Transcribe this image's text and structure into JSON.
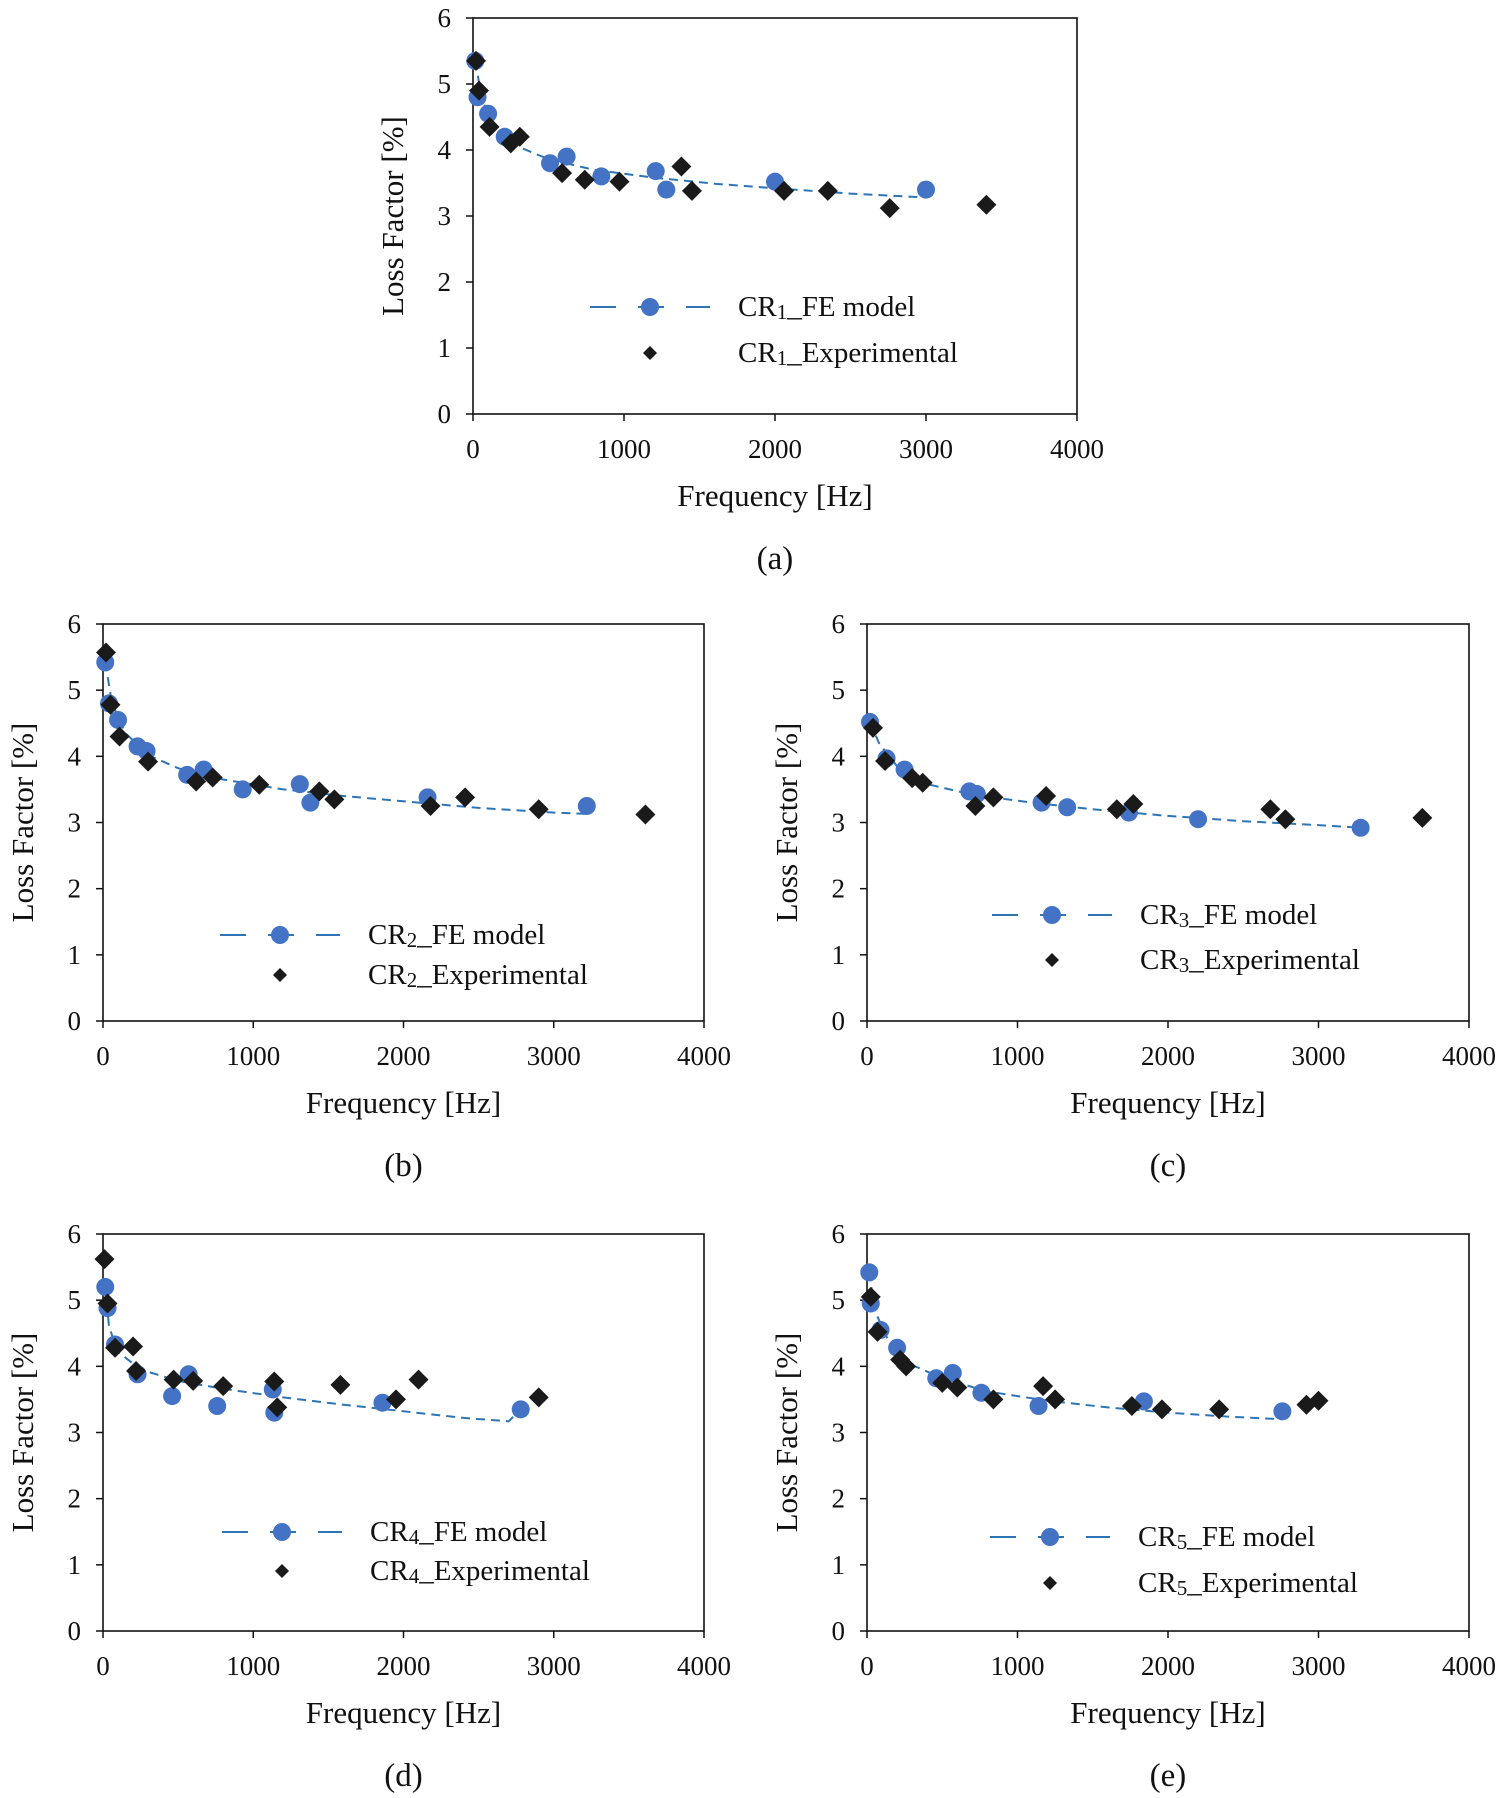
{
  "colors": {
    "model_marker": "#4472C4",
    "model_line": "#2E75B6",
    "experimental_marker": "#1A1A1A",
    "axis": "#111111"
  },
  "chart_data": [
    {
      "id": "a",
      "type": "scatter",
      "caption": "(a)",
      "xlabel": "Frequency [Hz]",
      "ylabel": "Loss Factor [%]",
      "xlim": [
        0,
        4000
      ],
      "ylim": [
        0,
        6
      ],
      "xticks": [
        "0",
        "1000",
        "2000",
        "3000",
        "4000"
      ],
      "yticks": [
        "0",
        "1",
        "2",
        "3",
        "4",
        "5",
        "6"
      ],
      "legend_position": "bottom-right",
      "series": [
        {
          "name": "CR1_FE model",
          "label_prefix": "CR",
          "label_sub": "1",
          "label_suffix": "_FE model",
          "marker": "circle",
          "points": [
            [
              15,
              5.35
            ],
            [
              30,
              4.8
            ],
            [
              100,
              4.55
            ],
            [
              210,
              4.2
            ],
            [
              510,
              3.8
            ],
            [
              620,
              3.9
            ],
            [
              850,
              3.6
            ],
            [
              1210,
              3.68
            ],
            [
              1280,
              3.4
            ],
            [
              2000,
              3.52
            ],
            [
              3000,
              3.4
            ]
          ],
          "fit": [
            [
              15,
              5.35
            ],
            [
              60,
              4.75
            ],
            [
              150,
              4.35
            ],
            [
              300,
              4.05
            ],
            [
              500,
              3.86
            ],
            [
              800,
              3.7
            ],
            [
              1200,
              3.58
            ],
            [
              1600,
              3.49
            ],
            [
              2000,
              3.42
            ],
            [
              2500,
              3.34
            ],
            [
              3000,
              3.28
            ]
          ]
        },
        {
          "name": "CR1_Experimental",
          "label_prefix": "CR",
          "label_sub": "1",
          "label_suffix": "_Experimental",
          "marker": "diamond",
          "points": [
            [
              20,
              5.35
            ],
            [
              40,
              4.9
            ],
            [
              110,
              4.35
            ],
            [
              250,
              4.1
            ],
            [
              310,
              4.2
            ],
            [
              590,
              3.65
            ],
            [
              740,
              3.55
            ],
            [
              970,
              3.52
            ],
            [
              1380,
              3.75
            ],
            [
              1450,
              3.38
            ],
            [
              2060,
              3.38
            ],
            [
              2350,
              3.38
            ],
            [
              2760,
              3.12
            ],
            [
              3400,
              3.17
            ]
          ]
        }
      ]
    },
    {
      "id": "b",
      "type": "scatter",
      "caption": "(b)",
      "xlabel": "Frequency [Hz]",
      "ylabel": "Loss Factor [%]",
      "xlim": [
        0,
        4000
      ],
      "ylim": [
        0,
        6
      ],
      "xticks": [
        "0",
        "1000",
        "2000",
        "3000",
        "4000"
      ],
      "yticks": [
        "0",
        "1",
        "2",
        "3",
        "4",
        "5",
        "6"
      ],
      "legend_position": "bottom-right",
      "series": [
        {
          "name": "CR2_FE model",
          "label_prefix": "CR",
          "label_sub": "2",
          "label_suffix": "_FE model",
          "marker": "circle",
          "points": [
            [
              15,
              5.42
            ],
            [
              40,
              4.8
            ],
            [
              100,
              4.55
            ],
            [
              230,
              4.15
            ],
            [
              290,
              4.08
            ],
            [
              560,
              3.72
            ],
            [
              670,
              3.8
            ],
            [
              930,
              3.5
            ],
            [
              1310,
              3.58
            ],
            [
              1380,
              3.3
            ],
            [
              2160,
              3.38
            ],
            [
              3220,
              3.25
            ]
          ],
          "fit": [
            [
              15,
              5.42
            ],
            [
              60,
              4.8
            ],
            [
              150,
              4.35
            ],
            [
              300,
              4.02
            ],
            [
              500,
              3.82
            ],
            [
              800,
              3.65
            ],
            [
              1200,
              3.5
            ],
            [
              1600,
              3.4
            ],
            [
              2000,
              3.32
            ],
            [
              2500,
              3.22
            ],
            [
              3000,
              3.15
            ],
            [
              3220,
              3.13
            ]
          ]
        },
        {
          "name": "CR2_Experimental",
          "label_prefix": "CR",
          "label_sub": "2",
          "label_suffix": "_Experimental",
          "marker": "diamond",
          "points": [
            [
              20,
              5.57
            ],
            [
              50,
              4.78
            ],
            [
              110,
              4.3
            ],
            [
              300,
              3.92
            ],
            [
              620,
              3.62
            ],
            [
              730,
              3.68
            ],
            [
              1040,
              3.57
            ],
            [
              1440,
              3.47
            ],
            [
              1540,
              3.35
            ],
            [
              2180,
              3.25
            ],
            [
              2410,
              3.38
            ],
            [
              2900,
              3.2
            ],
            [
              3610,
              3.12
            ]
          ]
        }
      ]
    },
    {
      "id": "c",
      "type": "scatter",
      "caption": "(c)",
      "xlabel": "Frequency [Hz]",
      "ylabel": "Loss Factor [%]",
      "xlim": [
        0,
        4000
      ],
      "ylim": [
        0,
        6
      ],
      "xticks": [
        "0",
        "1000",
        "2000",
        "3000",
        "4000"
      ],
      "yticks": [
        "0",
        "1",
        "2",
        "3",
        "4",
        "5",
        "6"
      ],
      "legend_position": "bottom-right",
      "series": [
        {
          "name": "CR3_FE model",
          "label_prefix": "CR",
          "label_sub": "3",
          "label_suffix": "_FE model",
          "marker": "circle",
          "points": [
            [
              20,
              4.52
            ],
            [
              130,
              3.97
            ],
            [
              250,
              3.8
            ],
            [
              680,
              3.47
            ],
            [
              730,
              3.43
            ],
            [
              1160,
              3.3
            ],
            [
              1330,
              3.23
            ],
            [
              1740,
              3.15
            ],
            [
              2200,
              3.05
            ],
            [
              3280,
              2.92
            ]
          ],
          "fit": [
            [
              20,
              4.52
            ],
            [
              80,
              4.2
            ],
            [
              200,
              3.85
            ],
            [
              400,
              3.58
            ],
            [
              700,
              3.42
            ],
            [
              1100,
              3.3
            ],
            [
              1500,
              3.2
            ],
            [
              2000,
              3.1
            ],
            [
              2500,
              3.02
            ],
            [
              3000,
              2.96
            ],
            [
              3280,
              2.92
            ]
          ]
        },
        {
          "name": "CR3_Experimental",
          "label_prefix": "CR",
          "label_sub": "3",
          "label_suffix": "_Experimental",
          "marker": "diamond",
          "points": [
            [
              40,
              4.43
            ],
            [
              120,
              3.93
            ],
            [
              300,
              3.67
            ],
            [
              370,
              3.6
            ],
            [
              720,
              3.25
            ],
            [
              840,
              3.38
            ],
            [
              1190,
              3.4
            ],
            [
              1660,
              3.2
            ],
            [
              1770,
              3.28
            ],
            [
              2680,
              3.2
            ],
            [
              2780,
              3.05
            ],
            [
              3690,
              3.07
            ]
          ]
        }
      ]
    },
    {
      "id": "d",
      "type": "scatter",
      "caption": "(d)",
      "xlabel": "Frequency [Hz]",
      "ylabel": "Loss Factor [%]",
      "xlim": [
        0,
        4000
      ],
      "ylim": [
        0,
        6
      ],
      "xticks": [
        "0",
        "1000",
        "2000",
        "3000",
        "4000"
      ],
      "yticks": [
        "0",
        "1",
        "2",
        "3",
        "4",
        "5",
        "6"
      ],
      "legend_position": "bottom-right",
      "series": [
        {
          "name": "CR4_FE model",
          "label_prefix": "CR",
          "label_sub": "4",
          "label_suffix": "_FE model",
          "marker": "circle",
          "points": [
            [
              15,
              5.2
            ],
            [
              30,
              4.88
            ],
            [
              80,
              4.33
            ],
            [
              230,
              3.88
            ],
            [
              460,
              3.55
            ],
            [
              570,
              3.88
            ],
            [
              760,
              3.4
            ],
            [
              1130,
              3.65
            ],
            [
              1140,
              3.3
            ],
            [
              1860,
              3.45
            ],
            [
              2780,
              3.35
            ]
          ],
          "fit": [
            [
              15,
              5.2
            ],
            [
              40,
              4.6
            ],
            [
              100,
              4.22
            ],
            [
              250,
              3.95
            ],
            [
              500,
              3.78
            ],
            [
              800,
              3.66
            ],
            [
              1200,
              3.53
            ],
            [
              1600,
              3.42
            ],
            [
              2000,
              3.32
            ],
            [
              2400,
              3.22
            ],
            [
              2700,
              3.17
            ],
            [
              2780,
              3.35
            ]
          ]
        },
        {
          "name": "CR4_Experimental",
          "label_prefix": "CR",
          "label_sub": "4",
          "label_suffix": "_Experimental",
          "marker": "diamond",
          "points": [
            [
              10,
              5.62
            ],
            [
              30,
              4.95
            ],
            [
              80,
              4.28
            ],
            [
              200,
              4.3
            ],
            [
              220,
              3.93
            ],
            [
              470,
              3.8
            ],
            [
              600,
              3.78
            ],
            [
              800,
              3.7
            ],
            [
              1140,
              3.77
            ],
            [
              1160,
              3.38
            ],
            [
              1580,
              3.72
            ],
            [
              1950,
              3.5
            ],
            [
              2100,
              3.8
            ],
            [
              2900,
              3.53
            ]
          ]
        }
      ]
    },
    {
      "id": "e",
      "type": "scatter",
      "caption": "(e)",
      "xlabel": "Frequency [Hz]",
      "ylabel": "Loss Factor [%]",
      "xlim": [
        0,
        4000
      ],
      "ylim": [
        0,
        6
      ],
      "xticks": [
        "0",
        "1000",
        "2000",
        "3000",
        "4000"
      ],
      "yticks": [
        "0",
        "1",
        "2",
        "3",
        "4",
        "5",
        "6"
      ],
      "legend_position": "bottom-right",
      "series": [
        {
          "name": "CR5_FE model",
          "label_prefix": "CR",
          "label_sub": "5",
          "label_suffix": "_FE model",
          "marker": "circle",
          "points": [
            [
              15,
              5.42
            ],
            [
              25,
              4.95
            ],
            [
              90,
              4.55
            ],
            [
              200,
              4.28
            ],
            [
              460,
              3.82
            ],
            [
              570,
              3.9
            ],
            [
              760,
              3.6
            ],
            [
              1140,
              3.4
            ],
            [
              1840,
              3.47
            ],
            [
              2760,
              3.32
            ]
          ],
          "fit": [
            [
              15,
              5.42
            ],
            [
              50,
              4.85
            ],
            [
              150,
              4.35
            ],
            [
              300,
              4.02
            ],
            [
              500,
              3.82
            ],
            [
              800,
              3.62
            ],
            [
              1200,
              3.48
            ],
            [
              1600,
              3.38
            ],
            [
              2000,
              3.3
            ],
            [
              2400,
              3.24
            ],
            [
              2760,
              3.2
            ]
          ]
        },
        {
          "name": "CR5_Experimental",
          "label_prefix": "CR",
          "label_sub": "5",
          "label_suffix": "_Experimental",
          "marker": "diamond",
          "points": [
            [
              25,
              5.05
            ],
            [
              70,
              4.52
            ],
            [
              220,
              4.1
            ],
            [
              260,
              4.0
            ],
            [
              500,
              3.75
            ],
            [
              600,
              3.68
            ],
            [
              840,
              3.5
            ],
            [
              1170,
              3.7
            ],
            [
              1250,
              3.5
            ],
            [
              1760,
              3.4
            ],
            [
              1960,
              3.35
            ],
            [
              2340,
              3.35
            ],
            [
              2920,
              3.42
            ],
            [
              3000,
              3.48
            ]
          ]
        }
      ]
    }
  ]
}
